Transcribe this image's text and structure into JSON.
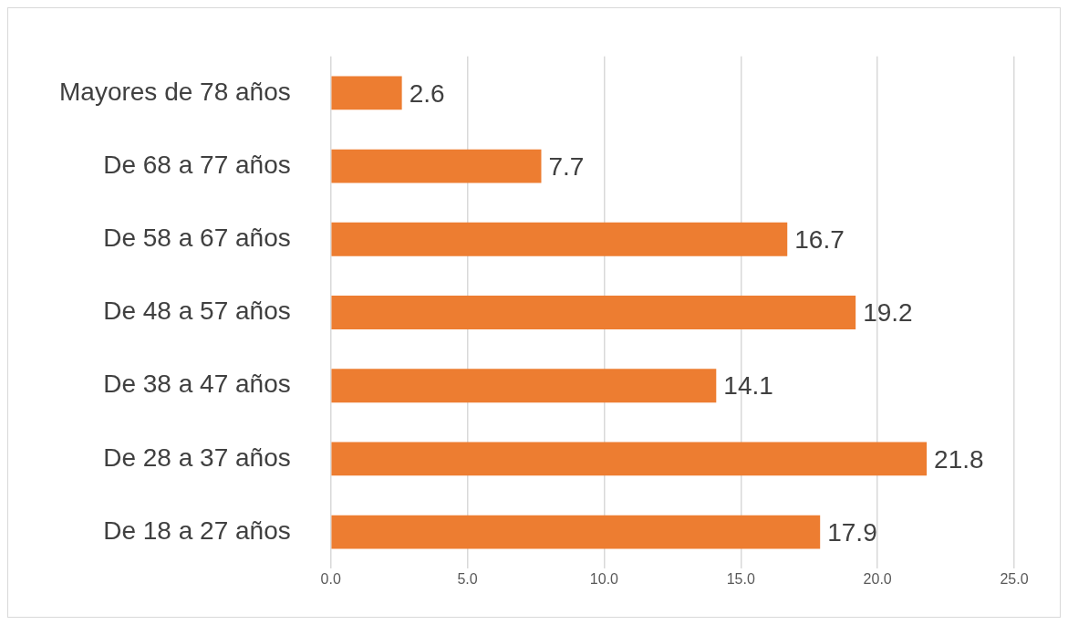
{
  "chart_data": {
    "type": "bar",
    "orientation": "horizontal",
    "categories": [
      "Mayores de 78 años",
      "De 68 a 77 años",
      "De 58 a 67 años",
      "De 48 a 57 años",
      "De 38 a 47 años",
      "De 28 a 37 años",
      "De 18 a 27 años"
    ],
    "values": [
      2.6,
      7.7,
      16.7,
      19.2,
      14.1,
      21.8,
      17.9
    ],
    "color": "#ed7d31",
    "xlim": [
      0,
      25
    ],
    "xticks": [
      {
        "value": 0,
        "label": "0.0"
      },
      {
        "value": 5,
        "label": "5.0"
      },
      {
        "value": 10,
        "label": "10.0"
      },
      {
        "value": 15,
        "label": "15.0"
      },
      {
        "value": 20,
        "label": "20.0"
      },
      {
        "value": 25,
        "label": "25.0"
      }
    ],
    "grid": "x",
    "data_labels": true,
    "legend": false
  }
}
